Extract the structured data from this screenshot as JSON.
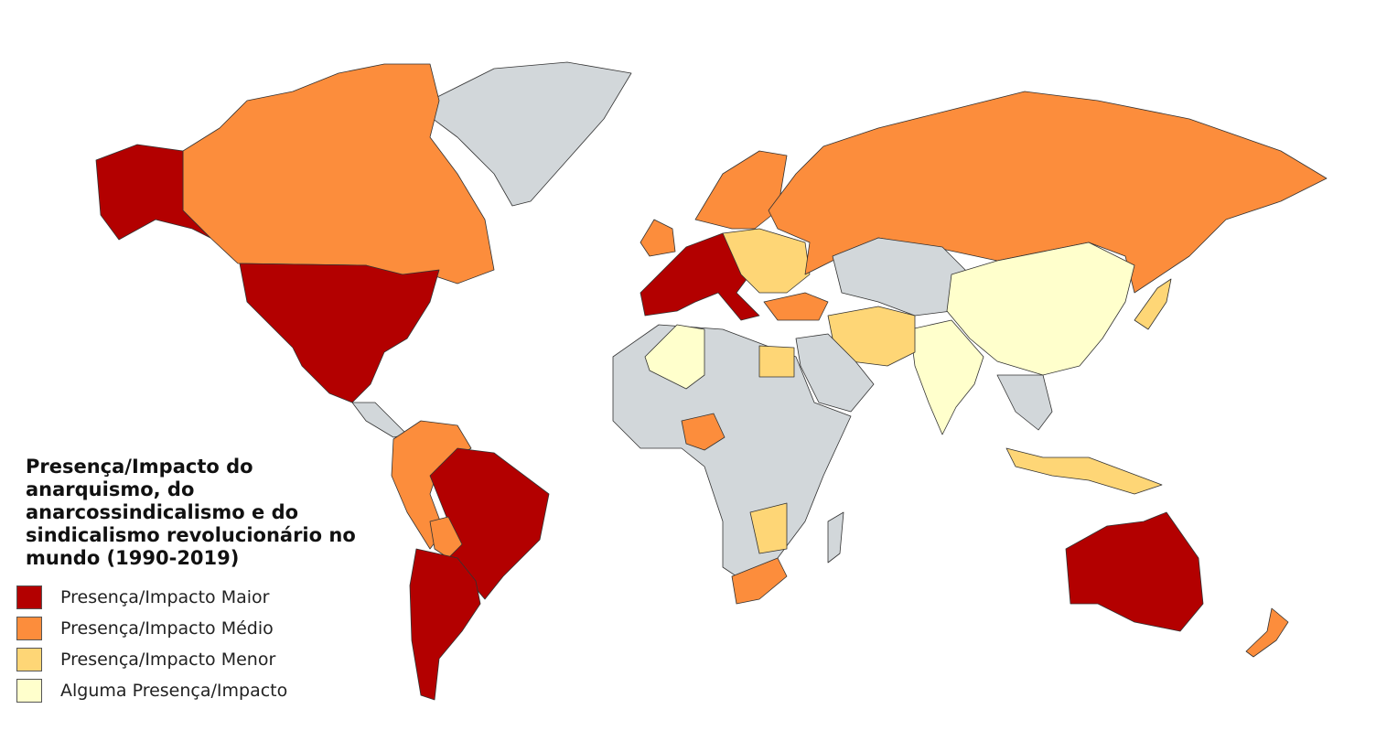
{
  "legend": {
    "title": "Presença/Impacto do anarquismo, do anarcossindicalismo e do sindicalismo revolucionário no mundo (1990-2019)",
    "items": [
      {
        "label": "Presença/Impacto Maior",
        "color": "#b30000"
      },
      {
        "label": "Presença/Impacto Médio",
        "color": "#fc8d3c"
      },
      {
        "label": "Presença/Impacto Menor",
        "color": "#fed676"
      },
      {
        "label": "Alguma Presença/Impacto",
        "color": "#ffffcc"
      }
    ],
    "no_data_color": "#d2d7da"
  }
}
